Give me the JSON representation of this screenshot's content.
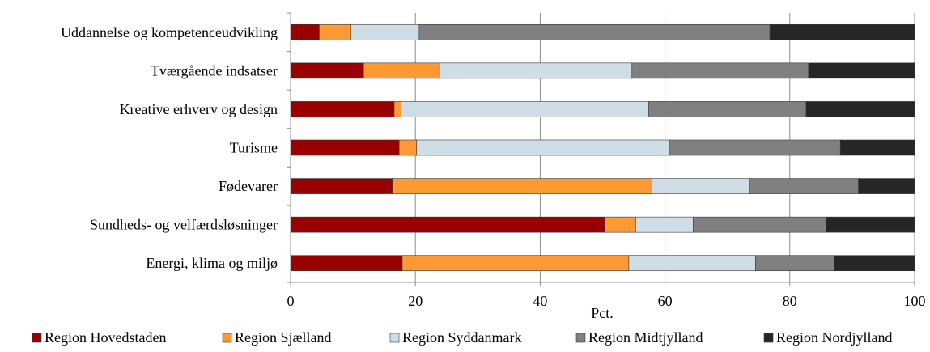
{
  "chart_data": {
    "type": "bar",
    "orientation": "horizontal",
    "stacked": true,
    "categories": [
      "Uddannelse og kompetenceudvikling",
      "Tværgående indsatser",
      "Kreative erhverv og design",
      "Turisme",
      "Fødevarer",
      "Sundheds- og velfærdsløsninger",
      "Energi, klima og miljø"
    ],
    "series": [
      {
        "name": "Region Hovedstaden",
        "color": "#990000",
        "values": [
          4.6,
          11.7,
          16.6,
          17.4,
          16.3,
          50.3,
          17.9
        ]
      },
      {
        "name": "Region Sjælland",
        "color": "#ff9933",
        "values": [
          5.1,
          12.2,
          1.1,
          2.8,
          41.6,
          5.0,
          36.3
        ]
      },
      {
        "name": "Region Syddanmark",
        "color": "#cfdee6",
        "values": [
          10.9,
          30.8,
          39.7,
          40.5,
          15.6,
          9.2,
          20.3
        ]
      },
      {
        "name": "Region Midtjylland",
        "color": "#808080",
        "values": [
          56.2,
          28.3,
          25.2,
          27.4,
          17.5,
          21.3,
          12.6
        ]
      },
      {
        "name": "Region Nordjylland",
        "color": "#262626",
        "values": [
          23.2,
          17.0,
          17.4,
          11.9,
          9.0,
          14.2,
          12.9
        ]
      }
    ],
    "xlabel": "Pct.",
    "xlim": [
      0,
      100
    ],
    "xticks": [
      0,
      20,
      40,
      60,
      80,
      100
    ],
    "grid": "vertical",
    "legend": "bottom"
  }
}
